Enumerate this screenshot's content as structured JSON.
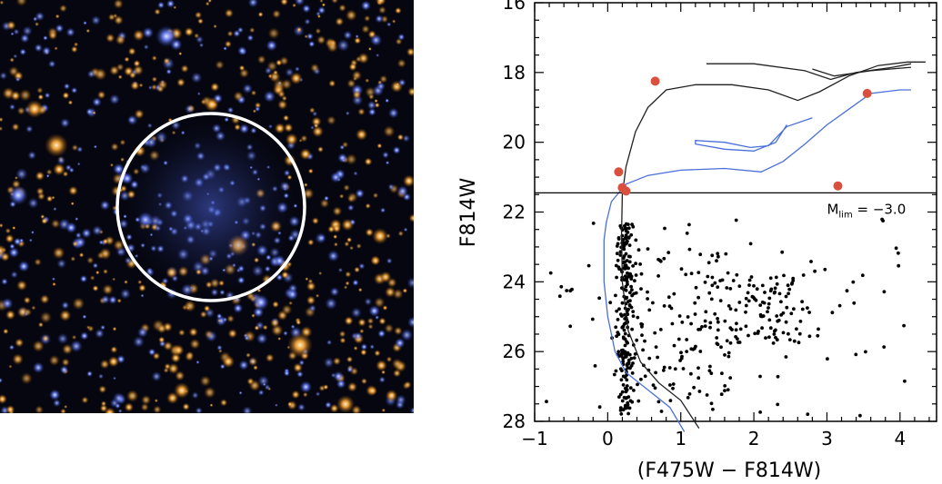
{
  "image_panel": {
    "description_icon": "star-cluster-image",
    "colors": {
      "background": "#05060f",
      "blue_star": "#6f86ff",
      "orange_star": "#ffab3a",
      "circle": "#ffffff"
    }
  },
  "chart_data": {
    "type": "scatter",
    "xlabel": "(F475W − F814W)",
    "ylabel": "F814W",
    "xlim": [
      -1.0,
      4.5
    ],
    "ylim": [
      28,
      16
    ],
    "x_ticks": [
      -1,
      0,
      1,
      2,
      3,
      4
    ],
    "x_tick_labels": [
      "−1",
      "0",
      "1",
      "2",
      "3",
      "4"
    ],
    "y_ticks": [
      16,
      18,
      20,
      22,
      24,
      26,
      28
    ],
    "y_tick_labels": [
      "16",
      "18",
      "20",
      "22",
      "24",
      "26",
      "28"
    ],
    "limit_line": {
      "y": 21.45,
      "label_main": "M",
      "label_sub": "lim",
      "label_value": " = −3.0"
    },
    "highlighted_stars": {
      "color": "#d9503f",
      "points": [
        [
          0.65,
          18.25
        ],
        [
          3.55,
          18.6
        ],
        [
          0.15,
          20.85
        ],
        [
          0.2,
          21.3
        ],
        [
          0.25,
          21.4
        ],
        [
          3.15,
          21.25
        ]
      ]
    },
    "field_stars": {
      "color": "#000000",
      "count": 520,
      "description": "dense main-sequence / blue-loop population below the limit line"
    },
    "isochrones": [
      {
        "name": "black-isochrone",
        "color": "#202020",
        "points": [
          [
            1.25,
            28.2
          ],
          [
            1.0,
            27.4
          ],
          [
            0.7,
            26.9
          ],
          [
            0.45,
            26.3
          ],
          [
            0.28,
            25.4
          ],
          [
            0.2,
            24.0
          ],
          [
            0.19,
            22.6
          ],
          [
            0.2,
            21.5
          ],
          [
            0.25,
            20.7
          ],
          [
            0.38,
            19.7
          ],
          [
            0.55,
            19.0
          ],
          [
            0.8,
            18.5
          ],
          [
            1.2,
            18.35
          ],
          [
            1.7,
            18.35
          ],
          [
            2.2,
            18.5
          ],
          [
            2.6,
            18.8
          ],
          [
            2.9,
            18.55
          ],
          [
            3.3,
            18.1
          ],
          [
            3.7,
            17.8
          ],
          [
            4.1,
            17.7
          ],
          [
            4.35,
            17.7
          ]
        ]
      },
      {
        "name": "black-isochrone-agb-loop",
        "color": "#202020",
        "points": [
          [
            1.35,
            17.75
          ],
          [
            2.0,
            17.75
          ],
          [
            2.7,
            17.95
          ],
          [
            3.05,
            18.2
          ],
          [
            3.4,
            18.0
          ],
          [
            3.9,
            17.85
          ],
          [
            4.15,
            17.75
          ]
        ]
      },
      {
        "name": "black-isochrone-agb-loop-2",
        "color": "#202020",
        "points": [
          [
            2.8,
            17.9
          ],
          [
            3.1,
            18.1
          ],
          [
            3.6,
            17.95
          ],
          [
            4.15,
            17.85
          ]
        ]
      },
      {
        "name": "blue-isochrone",
        "color": "#4a6fd8",
        "points": [
          [
            1.05,
            28.3
          ],
          [
            0.85,
            27.6
          ],
          [
            0.55,
            27.1
          ],
          [
            0.25,
            26.6
          ],
          [
            0.1,
            26.0
          ],
          [
            0.0,
            25.0
          ],
          [
            -0.05,
            24.0
          ],
          [
            -0.05,
            22.8
          ],
          [
            -0.02,
            22.3
          ],
          [
            0.05,
            21.7
          ],
          [
            0.25,
            21.2
          ],
          [
            0.55,
            20.95
          ],
          [
            1.0,
            20.8
          ],
          [
            1.6,
            20.75
          ],
          [
            2.1,
            20.85
          ],
          [
            2.4,
            20.55
          ],
          [
            2.7,
            20.05
          ],
          [
            3.0,
            19.5
          ],
          [
            3.3,
            19.05
          ],
          [
            3.6,
            18.6
          ],
          [
            4.0,
            18.5
          ],
          [
            4.15,
            18.5
          ]
        ]
      },
      {
        "name": "blue-isochrone-loop",
        "color": "#4a6fd8",
        "points": [
          [
            2.45,
            19.5
          ],
          [
            2.3,
            20.0
          ],
          [
            2.0,
            20.25
          ],
          [
            1.6,
            20.2
          ],
          [
            1.2,
            20.05
          ],
          [
            1.2,
            19.95
          ],
          [
            1.6,
            20.0
          ],
          [
            1.95,
            20.15
          ],
          [
            2.2,
            20.1
          ],
          [
            2.45,
            19.55
          ],
          [
            2.8,
            19.3
          ]
        ]
      }
    ]
  }
}
